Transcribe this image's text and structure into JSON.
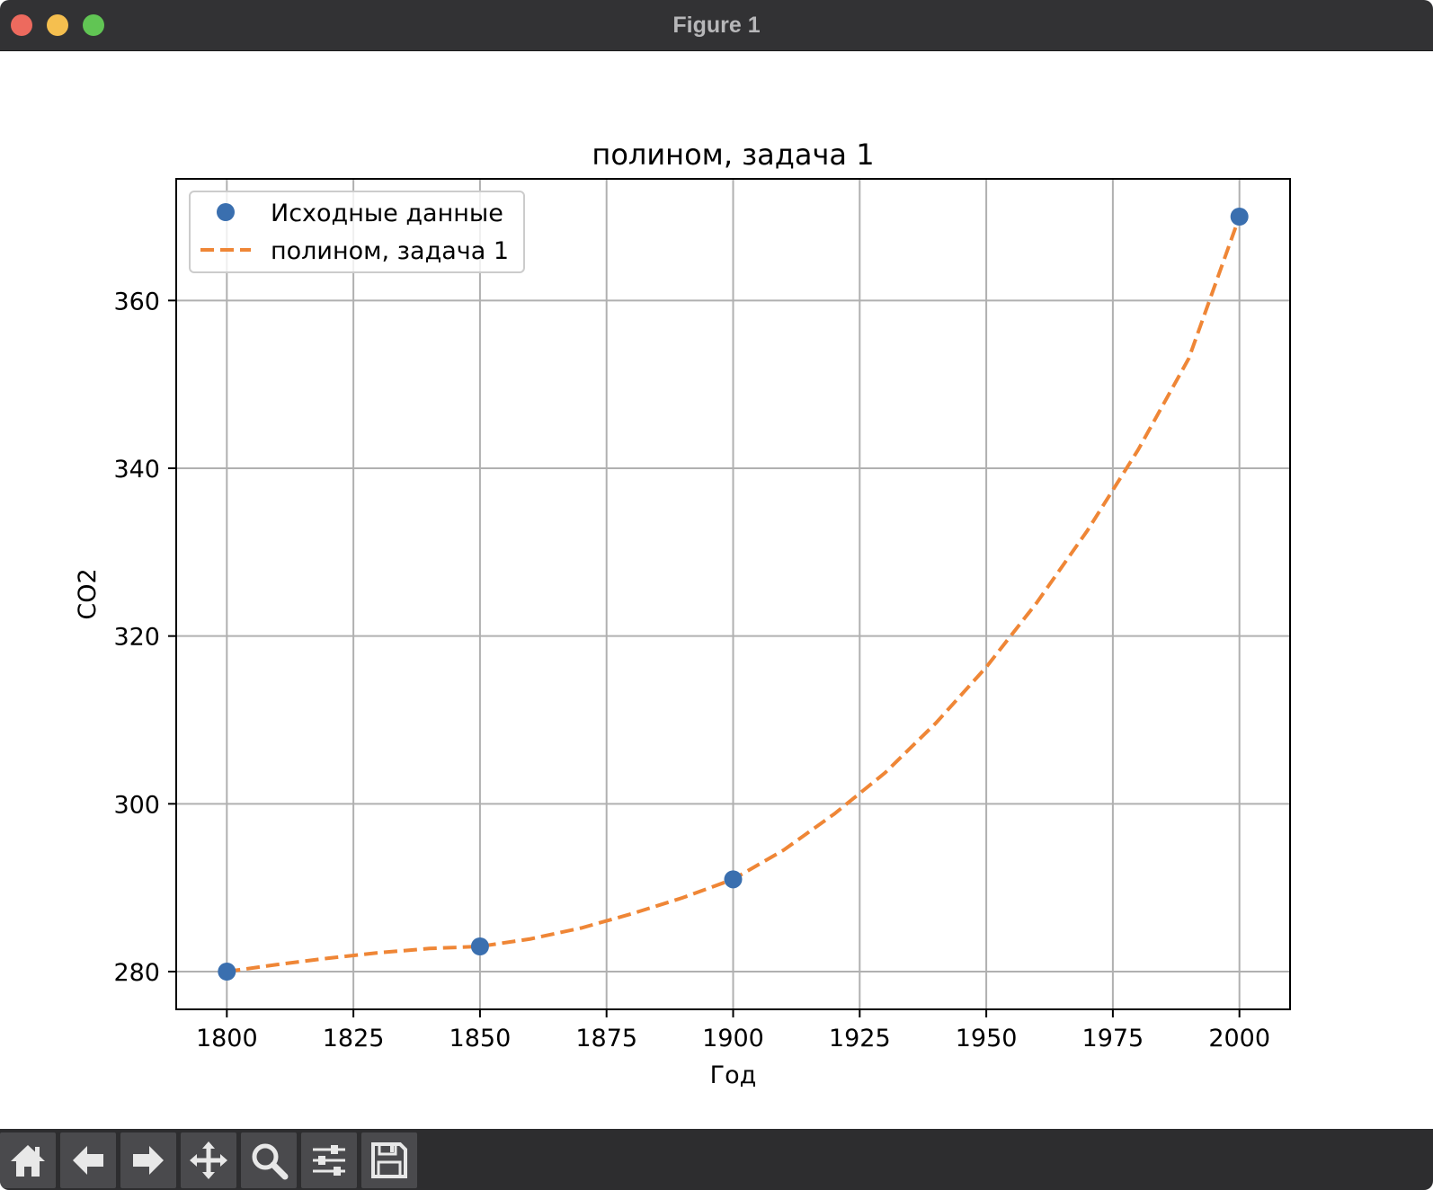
{
  "window": {
    "title": "Figure 1"
  },
  "chart_data": {
    "type": "line",
    "title": "полином, задача 1",
    "xlabel": "Год",
    "ylabel": "CO2",
    "xlim": [
      1790,
      2010
    ],
    "ylim": [
      275.5,
      374.5
    ],
    "xticks": [
      1800,
      1825,
      1850,
      1875,
      1900,
      1925,
      1950,
      1975,
      2000
    ],
    "yticks": [
      280,
      300,
      320,
      340,
      360
    ],
    "grid": true,
    "legend_position": "upper-left",
    "series": [
      {
        "name": "Исходные данные",
        "style": "markers",
        "color": "#3a6faf",
        "x": [
          1800,
          1850,
          1900,
          2000
        ],
        "y": [
          280,
          283,
          291,
          370
        ]
      },
      {
        "name": "полином, задача 1",
        "style": "dashed",
        "color": "#ef8636",
        "x": [
          1800,
          1810,
          1820,
          1830,
          1840,
          1850,
          1860,
          1870,
          1880,
          1890,
          1900,
          1910,
          1920,
          1930,
          1940,
          1950,
          1960,
          1970,
          1980,
          1990,
          2000
        ],
        "y": [
          280,
          280.85,
          281.6,
          282.25,
          282.75,
          283,
          283.9,
          285.2,
          286.9,
          288.8,
          291,
          294.5,
          298.8,
          303.7,
          309.6,
          316.3,
          324,
          332.6,
          342.2,
          353.1,
          370
        ]
      }
    ]
  },
  "toolbar": {
    "buttons": [
      {
        "icon": "home-icon"
      },
      {
        "icon": "back-arrow-icon"
      },
      {
        "icon": "forward-arrow-icon"
      },
      {
        "icon": "pan-move-icon"
      },
      {
        "icon": "zoom-magnifier-icon"
      },
      {
        "icon": "configure-subplots-icon"
      },
      {
        "icon": "save-floppy-icon"
      }
    ]
  }
}
